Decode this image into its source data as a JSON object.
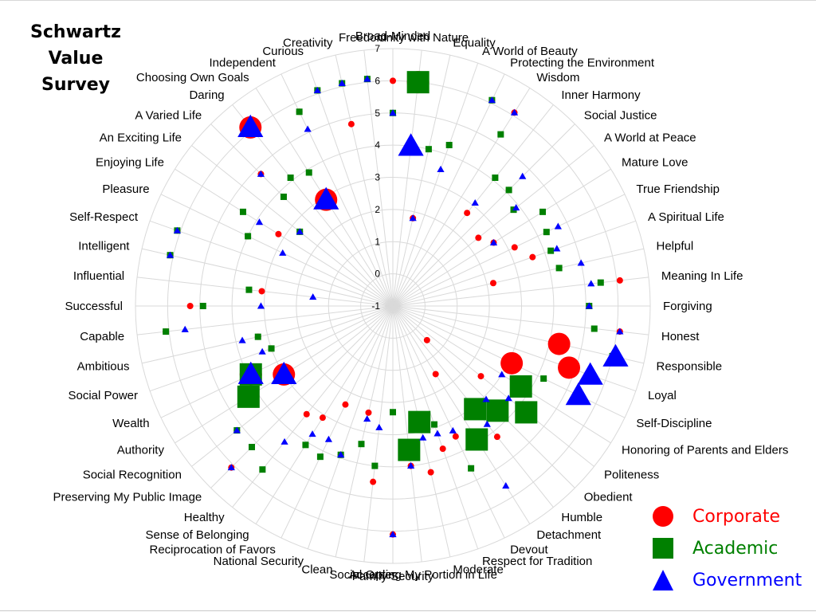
{
  "title_lines": [
    "Schwartz",
    "Value",
    "Survey"
  ],
  "legend": [
    {
      "name": "Corporate",
      "color": "#ff0000",
      "shape": "circle"
    },
    {
      "name": "Academic",
      "color": "#008000",
      "shape": "square"
    },
    {
      "name": "Government",
      "color": "#0000ff",
      "shape": "triangle"
    }
  ],
  "chart_data": {
    "type": "radar",
    "title": "Schwartz Value Survey",
    "radial_range": [
      -1,
      7
    ],
    "radial_ticks": [
      "-1",
      "0",
      "1",
      "2",
      "3",
      "4",
      "5",
      "6",
      "7"
    ],
    "grid": true,
    "legend_position": "bottom-right",
    "categories": [
      "Broad-Minded",
      "Unity with Nature",
      "Equality",
      "A World of Beauty",
      "Protecting the Environment",
      "Wisdom",
      "Inner Harmony",
      "Social Justice",
      "A World at Peace",
      "Mature Love",
      "True Friendship",
      "A Spiritual Life",
      "Helpful",
      "Meaning In Life",
      "Forgiving",
      "Honest",
      "Responsible",
      "Loyal",
      "Self-Discipline",
      "Honoring of Parents and Elders",
      "Politeness",
      "Obedient",
      "Humble",
      "Detachment",
      "Devout",
      "Respect for Tradition",
      "Moderate",
      "Accepting My Portion in Life",
      "Family Security",
      "Social Order",
      "Clean",
      "National Security",
      "Reciprocation of Favors",
      "Sense of Belonging",
      "Healthy",
      "Preserving My Public Image",
      "Social Recognition",
      "Authority",
      "Wealth",
      "Social Power",
      "Ambitious",
      "Capable",
      "Successful",
      "Influential",
      "Intelligent",
      "Self-Respect",
      "Pleasure",
      "Enjoying Life",
      "An Exciting Life",
      "A Varied Life",
      "Daring",
      "Choosing Own Goals",
      "Independent",
      "Curious",
      "Creativity",
      "Freedom"
    ],
    "series": [
      {
        "name": "Corporate",
        "values": [
          6,
          6,
          1.8,
          4.3,
          6.1,
          6.1,
          2.7,
          4.1,
          2.4,
          2.7,
          3.2,
          3.6,
          2.2,
          6.1,
          5.1,
          6.1,
          4.3,
          4.8,
          3.1,
          3.9,
          2.5,
          0.5,
          4.2,
          1.5,
          3.5,
          3.7,
          4.3,
          4.0,
          6.1,
          4.5,
          2.4,
          3.9,
          2.4,
          3.1,
          3.3,
          6.1,
          5.2,
          3.0,
          3.9,
          3.0,
          3.3,
          6.1,
          5.3,
          3.1,
          6.1,
          6.1,
          4.0,
          3.2,
          2.7,
          4.8,
          6.1,
          2.9,
          5.7,
          6.1,
          4.8,
          6.1
        ],
        "highlight": [
          "Unity with Nature",
          "Responsible",
          "Loyal",
          "Self-Discipline",
          "Authority",
          "Wealth",
          "Daring",
          "Choosing Own Goals"
        ]
      },
      {
        "name": "Academic",
        "values": [
          5,
          6,
          4.0,
          4.3,
          6.1,
          5.3,
          4.1,
          4.1,
          3.8,
          4.5,
          4.3,
          4.2,
          4.3,
          5.5,
          5.1,
          5.3,
          6.0,
          5.6,
          4.2,
          3.7,
          4.3,
          3.6,
          3.1,
          3.9,
          4.6,
          2.9,
          2.7,
          3.5,
          2.3,
          4.0,
          3.4,
          3.9,
          4.2,
          4.1,
          5.5,
          5.2,
          5.2,
          4.3,
          3.9,
          3.0,
          3.3,
          6.1,
          4.9,
          3.5,
          6.1,
          6.1,
          4.0,
          4.5,
          2.7,
          3.8,
          4.1,
          3.9,
          5.7,
          6.1,
          6.1,
          6.1
        ],
        "highlight": [
          "Unity with Nature",
          "Honoring of Parents and Elders",
          "Politeness",
          "Obedient",
          "Humble",
          "Detachment",
          "Moderate",
          "Accepting My Portion in Life",
          "Authority",
          "Wealth"
        ]
      },
      {
        "name": "Government",
        "values": [
          5,
          4,
          1.8,
          3.5,
          6.1,
          6.1,
          3.1,
          4.7,
          3.9,
          2.7,
          4.7,
          4.4,
          5.0,
          5.2,
          5.1,
          6.1,
          6.1,
          5.5,
          5.4,
          3.0,
          3.6,
          3.1,
          3.7,
          5.6,
          3.3,
          3.2,
          3.2,
          4.0,
          6.1,
          2.8,
          2.6,
          3.9,
          3.6,
          3.7,
          4.4,
          6.1,
          5.2,
          3.0,
          3.9,
          3.3,
          3.8,
          5.5,
          3.1,
          1.5,
          6.1,
          6.1,
          2.8,
          3.9,
          2.7,
          4.8,
          6.1,
          2.9,
          5.1,
          6.1,
          6.1,
          6.1
        ],
        "highlight": [
          "Unity with Nature",
          "Responsible",
          "Loyal",
          "Self-Discipline",
          "Authority",
          "Wealth",
          "Daring",
          "Choosing Own Goals"
        ]
      }
    ]
  }
}
